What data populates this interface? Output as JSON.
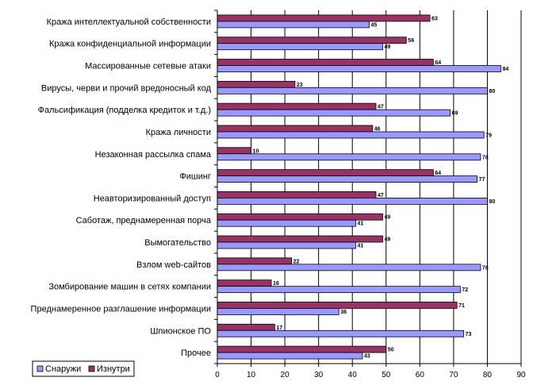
{
  "chart_data": {
    "type": "bar",
    "orientation": "horizontal",
    "title": "",
    "xlabel": "",
    "ylabel": "",
    "xlim": [
      0,
      90
    ],
    "xticks": [
      0,
      10,
      20,
      30,
      40,
      50,
      60,
      70,
      80,
      90
    ],
    "grid": "vertical",
    "legend_position": "bottom-left",
    "categories": [
      "Кража интеллектуальной собственности",
      "Кража конфиденциальной информации",
      "Массированные сетевые атаки",
      "Вирусы, черви и прочий вредоносный код",
      "Фальсификация (подделка кредиток и т.д.)",
      "Кража личности",
      "Незаконная рассылка спама",
      "Фишинг",
      "Неавторизированный доступ",
      "Саботаж, преднамеренная порча",
      "Вымогательство",
      "Взлом web-сайтов",
      "Зомбирование машин в сетях компании",
      "Преднамеренное разглашение информации",
      "Шпионское ПО",
      "Прочее"
    ],
    "series": [
      {
        "name": "Изнутри",
        "color": "#993366",
        "values": [
          63,
          56,
          64,
          23,
          47,
          46,
          10,
          64,
          47,
          49,
          49,
          22,
          16,
          71,
          17,
          50
        ]
      },
      {
        "name": "Снаружи",
        "color": "#9999ff",
        "values": [
          45,
          49,
          84,
          80,
          69,
          79,
          78,
          77,
          80,
          41,
          41,
          78,
          72,
          36,
          73,
          43
        ]
      }
    ],
    "legend_entries": [
      "Снаружи",
      "Изнутри"
    ]
  }
}
